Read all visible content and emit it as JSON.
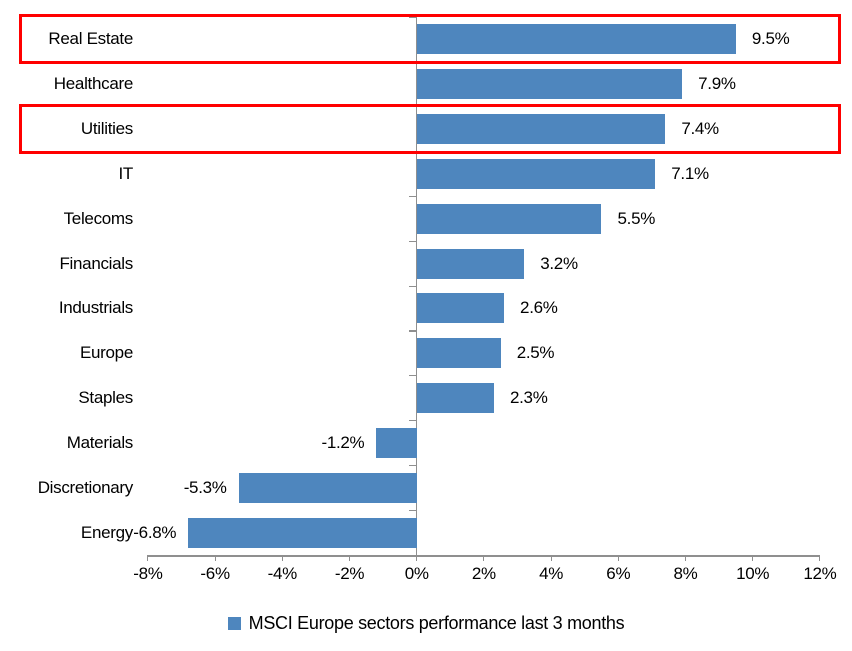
{
  "chart_data": {
    "type": "bar",
    "orientation": "horizontal",
    "categories": [
      "Real Estate",
      "Healthcare",
      "Utilities",
      "IT",
      "Telecoms",
      "Financials",
      "Industrials",
      "Europe",
      "Staples",
      "Materials",
      "Discretionary",
      "Energy"
    ],
    "values": [
      9.5,
      7.9,
      7.4,
      7.1,
      5.5,
      3.2,
      2.6,
      2.5,
      2.3,
      -1.2,
      -5.3,
      -6.8
    ],
    "data_labels": [
      "9.5%",
      "7.9%",
      "7.4%",
      "7.1%",
      "5.5%",
      "3.2%",
      "2.6%",
      "2.5%",
      "2.3%",
      "-1.2%",
      "-5.3%",
      "-6.8%"
    ],
    "xlim": [
      -8,
      12
    ],
    "x_tick_values": [
      -8,
      -6,
      -4,
      -2,
      0,
      2,
      4,
      6,
      8,
      10,
      12
    ],
    "x_ticks": [
      "-8%",
      "-6%",
      "-4%",
      "-2%",
      "0%",
      "2%",
      "4%",
      "6%",
      "8%",
      "10%",
      "12%"
    ],
    "grid": false,
    "bar_color": "#4E86BE",
    "axis_color": "#8F8F8F",
    "highlight_color": "#FF0000",
    "highlighted_categories": [
      "Real Estate",
      "Utilities"
    ],
    "legend": {
      "label": "MSCI Europe sectors performance last 3 months",
      "marker_color": "#4E86BE",
      "position": "bottom-center"
    }
  }
}
